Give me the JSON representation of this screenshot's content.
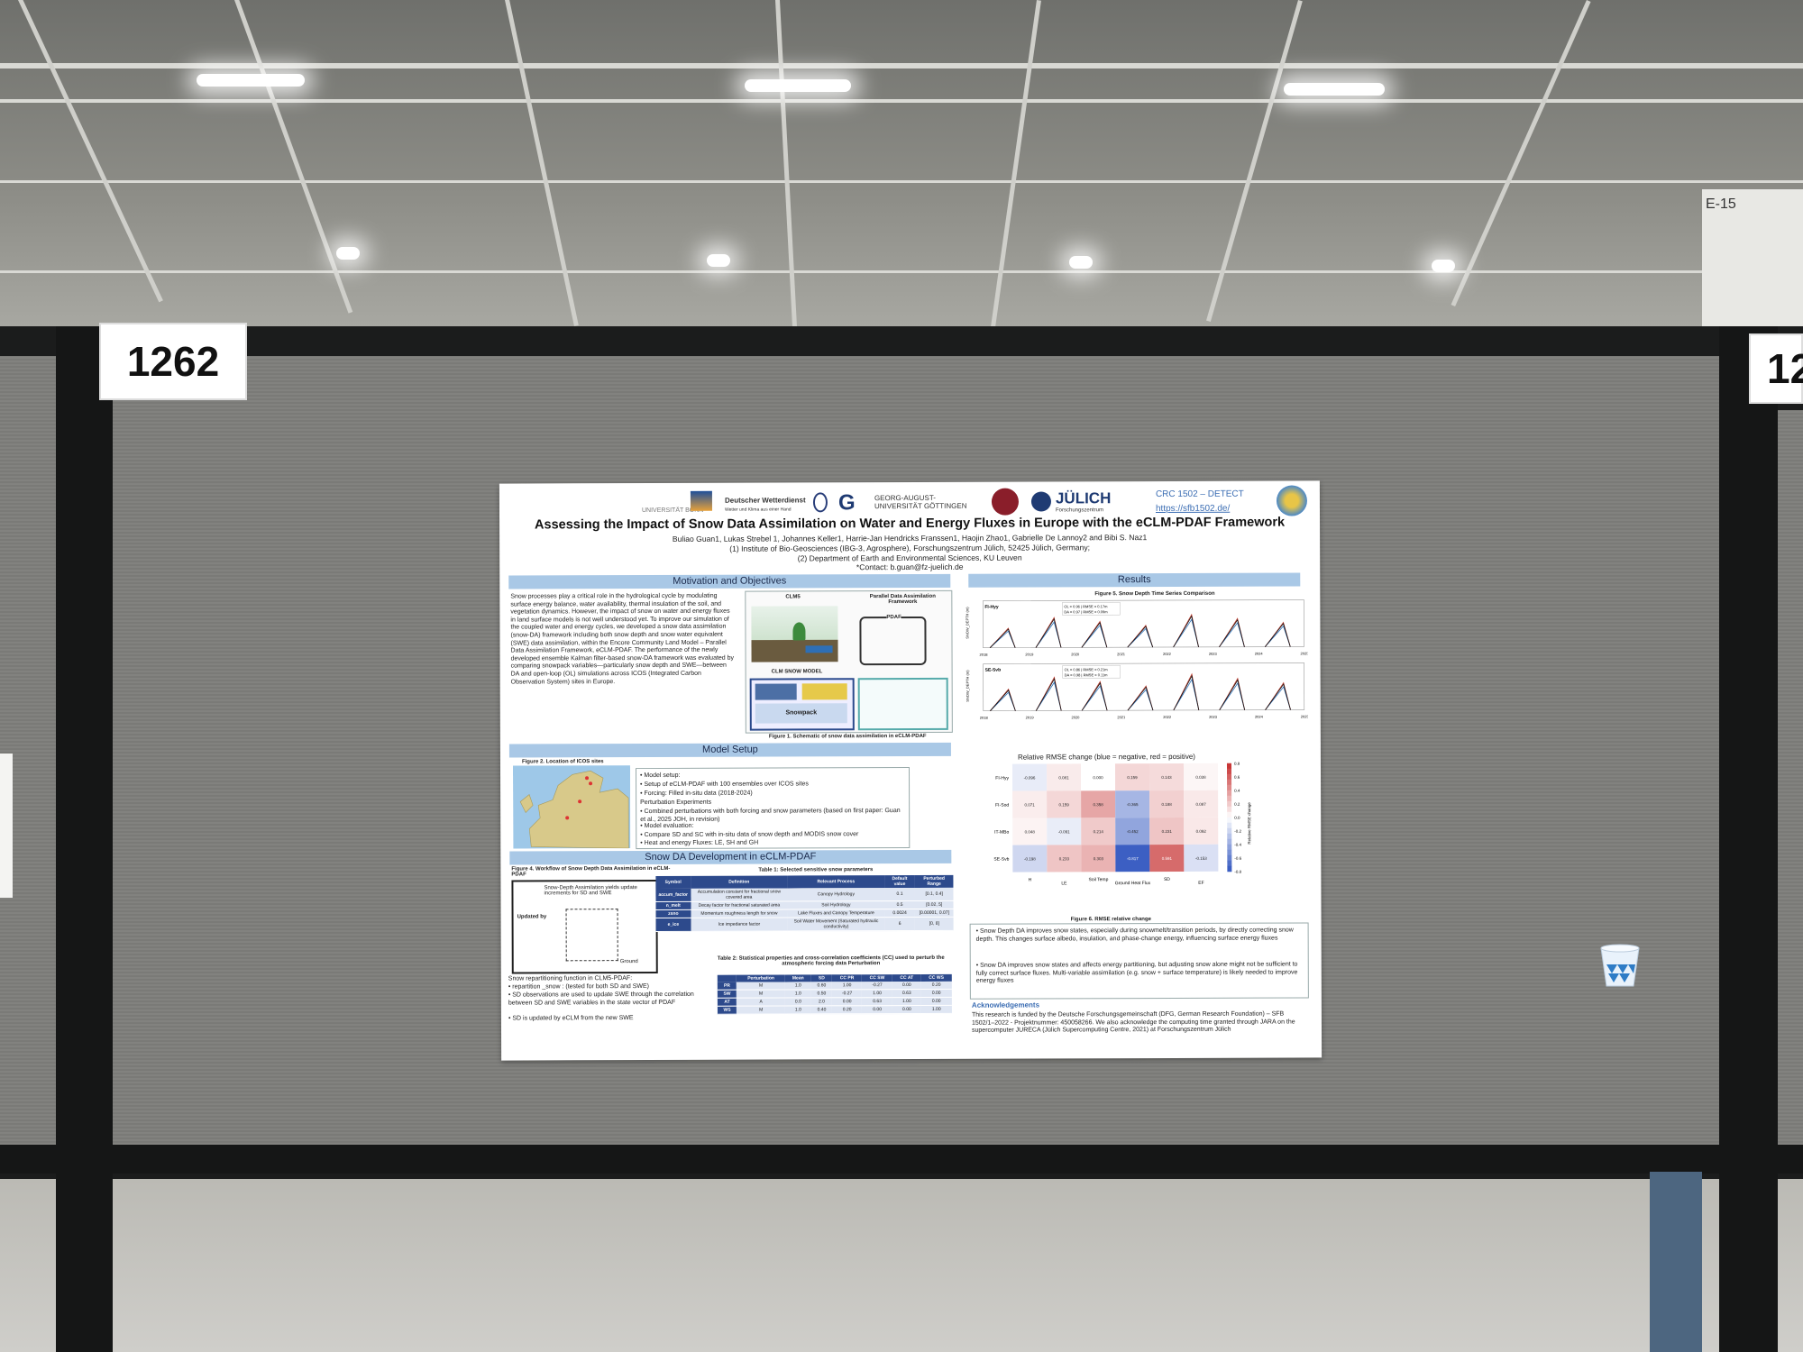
{
  "booth": {
    "number_left": "1262",
    "number_right": "12"
  },
  "pillar_label": "E-15",
  "poster": {
    "logos": {
      "university": "UNIVERSITÄT BONN",
      "dwd_name": "Deutscher Wetterdienst",
      "dwd_sub": "Wetter und Klima aus einer Hand",
      "goettingen": "GEORG-AUGUST-UNIVERSITÄT GÖTTINGEN",
      "juelich": "JÜLICH",
      "juelich_sub": "Forschungszentrum",
      "crc": "CRC 1502 – DETECT",
      "crc_url": "https://sfb1502.de/"
    },
    "title": "Assessing the Impact of Snow Data Assimilation on Water and Energy Fluxes in Europe with the eCLM-PDAF Framework",
    "authors": "Buliao Guan1, Lukas Strebel 1, Johannes Keller1, Harrie-Jan Hendricks Franssen1, Haojin Zhao1, Gabrielle De Lannoy2 and Bibi S. Naz1",
    "affil1": "(1) Institute of Bio-Geosciences (IBG-3, Agrosphere), Forschungszentrum Jülich, 52425 Jülich, Germany;",
    "affil2": "(2) Department of Earth and Environmental Sciences, KU Leuven",
    "contact": "*Contact: b.guan@fz-juelich.de",
    "sections": {
      "motivation": "Motivation and Objectives",
      "results": "Results",
      "model_setup": "Model Setup",
      "snow_da": "Snow DA  Development in eCLM-PDAF",
      "acknowledgements": "Acknowledgements"
    },
    "motivation_text": "Snow processes play a critical role in the hydrological cycle by modulating surface energy balance, water availability, thermal insulation of the soil, and vegetation dynamics. However, the impact of snow on water and energy fluxes in land surface models is not well understood yet. To improve our simulation of the coupled water and energy cycles, we developed a snow data assimilation (snow-DA) framework including both snow depth and snow water equivalent (SWE) data assimilation, within the Encore Community Land Model – Parallel Data Assimilation Framework, eCLM-PDAF. The performance of the newly developed ensemble Kalman filter-based snow-DA framework was evaluated by comparing snowpack variables—particularly snow depth and SWE—between DA and open-loop (OL) simulations across ICOS (Integrated Carbon Observation System) sites in Europe.",
    "fig1": {
      "clm5": "CLM5",
      "pdaf_title": "Parallel Data Assimilation Framework",
      "pdaf": "PDAF",
      "snow_model": "CLM SNOW MODEL",
      "snowpack": "Snowpack",
      "caption": "Figure 1. Schematic of snow data assimilation in eCLM-PDAF"
    },
    "fig2_caption": "Figure 2. Location of ICOS sites",
    "model_setup_lines": [
      "• Model setup:",
      "   • Setup of eCLM-PDAF with 100 ensembles over ICOS sites",
      "   • Forcing: Filled in-situ data (2018-2024)",
      "Perturbation Experiments",
      "• Combined perturbations with both forcing and snow parameters (based on first paper: Guan et al., 2025 JOH, in revision)",
      "• Model evaluation:",
      "   • Compare SD and SC with in-situ data of snow depth and MODIS snow cover",
      "   • Heat and energy Fluxes: LE, SH and GH"
    ],
    "fig4": {
      "caption": "Figure 4. Workflow of Snow Depth Data Assimilation in eCLM-PDAF",
      "box_title": "Snow-Depth Assimilation yields update increments for SD and SWE",
      "updated_by": "Updated by",
      "ground": "Ground"
    },
    "snow_da_lines": [
      "Snow repartitioning function in CLM5-PDAF:",
      "• repartition _snow : (tested for both SD and SWE)",
      "•    SD observations are used to update SWE through the correlation between SD and SWE variables in the state vector of PDAF",
      "•    SD is updated by eCLM from the new SWE"
    ],
    "table1": {
      "caption": "Table 1: Selected sensitive snow parameters",
      "headers": [
        "Symbol",
        "Definition",
        "Relevant Process",
        "Default value",
        "Perturbed Range"
      ],
      "rows": [
        [
          "accum_factor",
          "Accumulation constant for fractional snow covered area",
          "Canopy Hydrology",
          "0.1",
          "[0.1, 0.4]"
        ],
        [
          "n_melt",
          "Decay factor for fractional saturated area",
          "Soil Hydrology",
          "0.5",
          "[0.02, 5]"
        ],
        [
          "zsno",
          "Momentum roughness length for snow",
          "Lake Fluxes and Canopy Temperature",
          "0.0024",
          "[0.00001, 0.07]"
        ],
        [
          "e_ice",
          "Ice impedance factor",
          "Soil Water Movement (Saturated hydraulic conductivity)",
          "6",
          "[0, 8]"
        ]
      ]
    },
    "table2": {
      "caption": "Table 2: Statistical properties and cross-correlation coefficients (CC) used to perturb the atmospheric forcing data Perturbation",
      "headers": [
        "",
        "Perturbation",
        "Mean",
        "SD",
        "CC PR",
        "CC SW",
        "CC AT",
        "CC WS"
      ],
      "rows": [
        [
          "PR",
          "M",
          "1.0",
          "0.60",
          "1.00",
          "-0.27",
          "0.00",
          "0.20"
        ],
        [
          "SW",
          "M",
          "1.0",
          "0.50",
          "-0.27",
          "1.00",
          "0.63",
          "0.00"
        ],
        [
          "AT",
          "A",
          "0.0",
          "2.0",
          "0.00",
          "0.63",
          "1.00",
          "0.00"
        ],
        [
          "WS",
          "M",
          "1.0",
          "0.40",
          "0.20",
          "0.00",
          "0.00",
          "1.00"
        ]
      ]
    },
    "fig5": {
      "caption": "Figure 5. Snow Depth Time Series Comparison",
      "site1": "FI-Hyy",
      "site2": "SE-Svb",
      "legend1a": "OL = 0.96 | RMSE = 0.17m",
      "legend1b": "DA = 0.97 | RMSE = 0.09m",
      "legend2a": "OL = 0.86 | RMSE = 0.21m",
      "legend2b": "DA = 0.98 | RMSE = 0.11m",
      "ylabel": "SNOW_DEPTH (m)",
      "years": [
        "2018",
        "2019",
        "2020",
        "2021",
        "2022",
        "2023",
        "2024",
        "2025"
      ],
      "da_color": "#c0392b",
      "ol_color": "#2e6fb5",
      "obs_color": "#111111"
    },
    "heatmap": {
      "title": "Relative RMSE change (blue = negative, red = positive)",
      "rows": [
        "FI-Hyy",
        "FI-Sod",
        "IT-MBo",
        "SE-Svb"
      ],
      "cols": [
        "H",
        "LE",
        "Soil Temp",
        "Ground Heat Flux",
        "SD",
        "EF"
      ],
      "values": [
        [
          -0.096,
          0.081,
          0.0,
          0.159,
          0.143,
          0.038
        ],
        [
          0.071,
          0.159,
          0.358,
          -0.365,
          0.188,
          0.087
        ],
        [
          0.048,
          -0.091,
          0.214,
          -0.452,
          0.231,
          0.092
        ],
        [
          -0.198,
          0.233,
          0.303,
          -0.817,
          0.591,
          -0.153
        ]
      ],
      "value_labels": [
        [
          "-0.096",
          "0.081",
          "0.000",
          "0.159",
          "0.143",
          "0.038"
        ],
        [
          "0.071",
          "0.159",
          "0.358",
          "-0.365",
          "0.188",
          "0.087"
        ],
        [
          "0.048",
          "-0.091",
          "0.214",
          "-0.452",
          "0.231",
          "0.092"
        ],
        [
          "-0.198",
          "0.233",
          "0.303",
          "-0.817",
          "0.591",
          "-0.153"
        ]
      ],
      "scale_ticks": [
        "0.8",
        "0.6",
        "0.4",
        "0.2",
        "0.0",
        "-0.2",
        "-0.4",
        "-0.6",
        "-0.8"
      ],
      "scale_label": "Relative RMSE change",
      "caption": "Figure 6. RMSE relative change"
    },
    "results_bullets": [
      "• Snow Depth  DA improves snow states, especially during snowmelt/transition periods, by directly correcting snow depth. This changes surface albedo, insulation, and phase-change energy, influencing surface energy fluxes",
      "• Snow DA improves snow states and affects energy partitioning, but adjusting snow alone might not be sufficient to fully correct surface fluxes. Multi-variable assimilation (e.g. snow + surface temperature) is likely needed to improve energy fluxes"
    ],
    "acknowledgements_text": "This research is funded by the Deutsche Forschungsgemeinschaft (DFG, German Research Foundation) – SFB 1502/1–2022 - Projektnummer: 450058266. We also acknowledge the computing time granted through JARA on the supercomputer JURECA (Jülich Supercomputing Centre, 2021) at Forschungszentrum Jülich",
    "colors": {
      "section_bar": "#a9c8e6",
      "table_header": "#2d4a8c",
      "map_sea": "#9ec8e8",
      "map_land": "#d8c98a"
    }
  }
}
